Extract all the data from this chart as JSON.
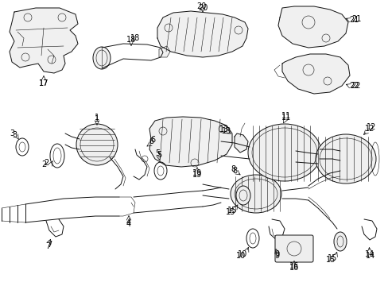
{
  "bg_color": "#ffffff",
  "line_color": "#111111",
  "label_color": "#000000",
  "fig_width": 4.89,
  "fig_height": 3.6,
  "dpi": 100
}
